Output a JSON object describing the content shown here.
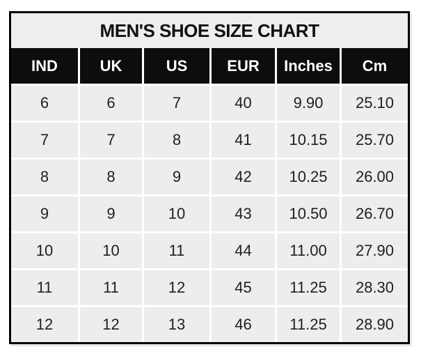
{
  "chart_data": {
    "type": "table",
    "title": "MEN'S SHOE SIZE CHART",
    "columns": [
      "IND",
      "UK",
      "US",
      "EUR",
      "Inches",
      "Cm"
    ],
    "rows": [
      [
        "6",
        "6",
        "7",
        "40",
        "9.90",
        "25.10"
      ],
      [
        "7",
        "7",
        "8",
        "41",
        "10.15",
        "25.70"
      ],
      [
        "8",
        "8",
        "9",
        "42",
        "10.25",
        "26.00"
      ],
      [
        "9",
        "9",
        "10",
        "43",
        "10.50",
        "26.70"
      ],
      [
        "10",
        "10",
        "11",
        "44",
        "11.00",
        "27.90"
      ],
      [
        "11",
        "11",
        "12",
        "45",
        "11.25",
        "28.30"
      ],
      [
        "12",
        "12",
        "13",
        "46",
        "11.25",
        "28.90"
      ]
    ]
  },
  "colors": {
    "header_bg": "#0d0d0d",
    "header_text": "#ffffff",
    "title_bg": "#efeeec",
    "cell_bg": "#efedeb",
    "cell_text": "#1f1f1f",
    "border": "#000000",
    "gridline": "#ffffff"
  }
}
